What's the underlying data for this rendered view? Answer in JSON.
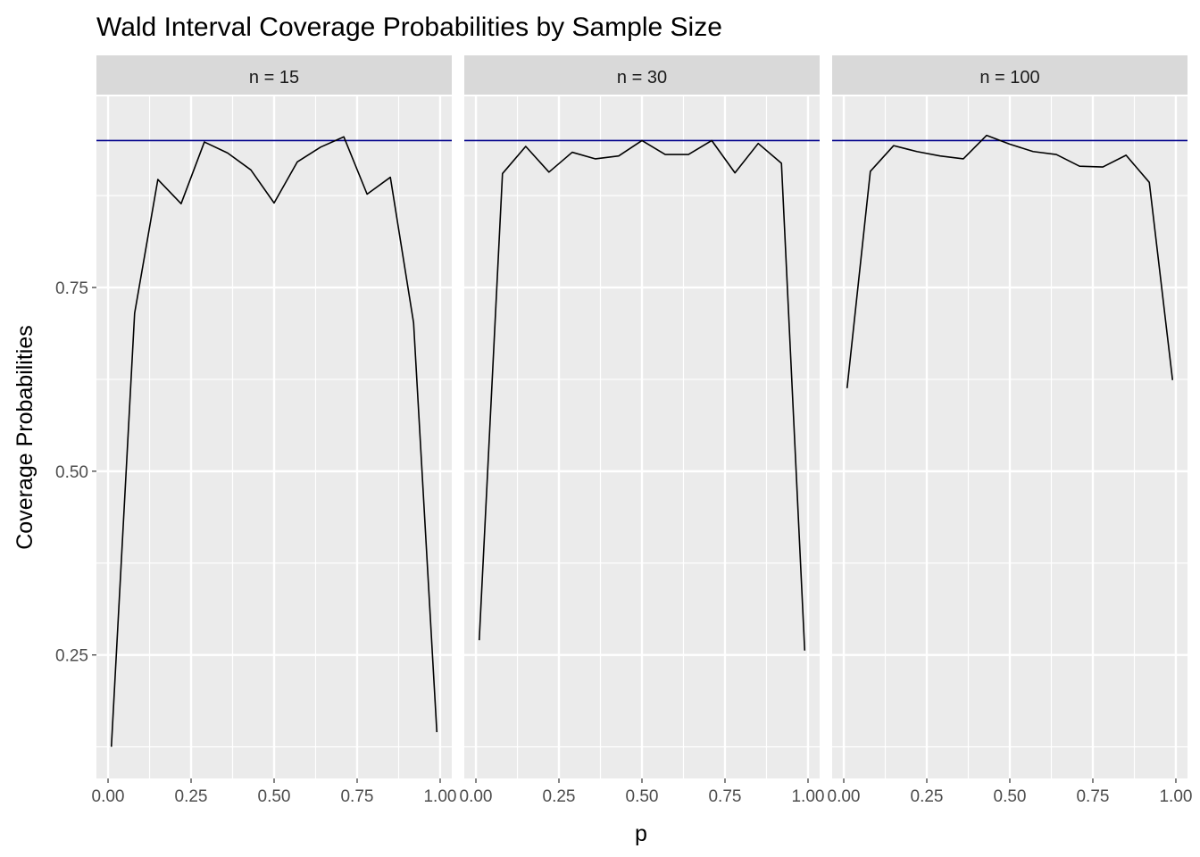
{
  "chart_data": {
    "type": "line",
    "title": "Wald Interval Coverage Probabilities by Sample Size",
    "xlabel": "p",
    "ylabel": "Coverage Probabilities",
    "xlim": [
      -0.035,
      1.035
    ],
    "ylim": [
      0.082,
      1.01
    ],
    "x_ticks": [
      0,
      0.25,
      0.5,
      0.75,
      1
    ],
    "x_tick_labels": [
      "0.00",
      "0.25",
      "0.50",
      "0.75",
      "1.00"
    ],
    "y_ticks": [
      0.25,
      0.5,
      0.75
    ],
    "y_tick_labels": [
      "0.25",
      "0.50",
      "0.75"
    ],
    "reference_line": {
      "y": 0.95,
      "color": "#00008B"
    },
    "line_color": "#000000",
    "panel_background": "#EBEBEB",
    "strip_background": "#D9D9D9",
    "grid": true,
    "facets": [
      {
        "label": "n = 15",
        "x": [
          0.01,
          0.08,
          0.15,
          0.22,
          0.29,
          0.36,
          0.43,
          0.5,
          0.57,
          0.64,
          0.71,
          0.78,
          0.85,
          0.92,
          0.99
        ],
        "y": [
          0.125,
          0.715,
          0.897,
          0.864,
          0.948,
          0.933,
          0.91,
          0.865,
          0.921,
          0.941,
          0.955,
          0.877,
          0.9,
          0.702,
          0.145
        ]
      },
      {
        "label": "n = 30",
        "x": [
          0.01,
          0.08,
          0.15,
          0.22,
          0.29,
          0.36,
          0.43,
          0.5,
          0.57,
          0.64,
          0.71,
          0.78,
          0.85,
          0.92,
          0.99
        ],
        "y": [
          0.27,
          0.905,
          0.942,
          0.907,
          0.934,
          0.925,
          0.929,
          0.95,
          0.931,
          0.931,
          0.95,
          0.906,
          0.946,
          0.919,
          0.256
        ]
      },
      {
        "label": "n = 100",
        "x": [
          0.01,
          0.08,
          0.15,
          0.22,
          0.29,
          0.36,
          0.43,
          0.5,
          0.57,
          0.64,
          0.71,
          0.78,
          0.85,
          0.92,
          0.99
        ],
        "y": [
          0.613,
          0.908,
          0.943,
          0.935,
          0.929,
          0.925,
          0.957,
          0.945,
          0.935,
          0.931,
          0.915,
          0.914,
          0.93,
          0.893,
          0.624
        ]
      }
    ]
  }
}
